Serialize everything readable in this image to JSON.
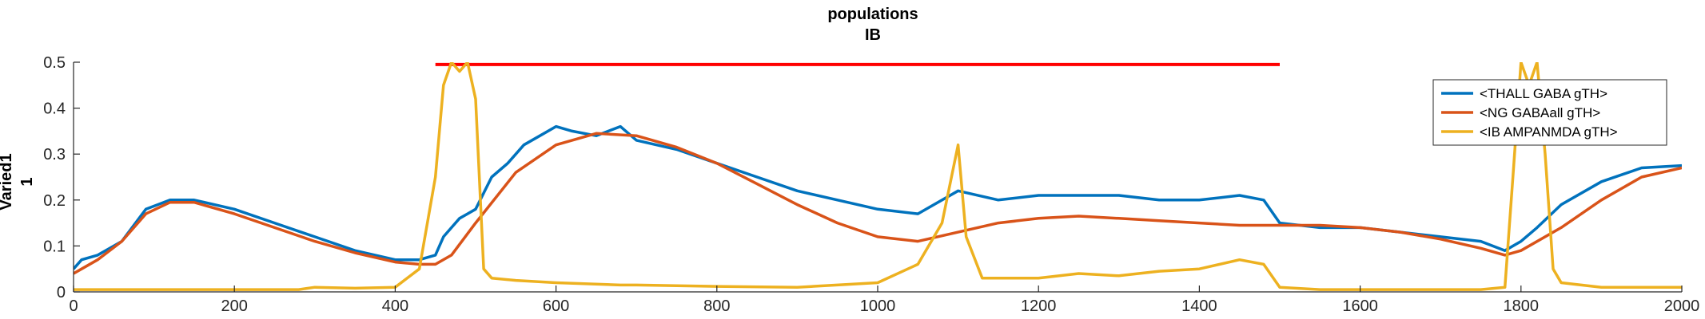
{
  "chart_data": {
    "type": "line",
    "title": "populations",
    "subtitle": "IB",
    "xlabel": "",
    "ylabel": "Varied1",
    "ylabel2": "1",
    "xlim": [
      0,
      2000
    ],
    "ylim": [
      0,
      0.5
    ],
    "xticks": [
      0,
      200,
      400,
      600,
      800,
      1000,
      1200,
      1400,
      1600,
      1800,
      2000
    ],
    "yticks": [
      0,
      0.1,
      0.2,
      0.3,
      0.4,
      0.5
    ],
    "xtick_labels": [
      "0",
      "200",
      "400",
      "600",
      "800",
      "1000",
      "1200",
      "1400",
      "1600",
      "1800",
      "2000"
    ],
    "ytick_labels": [
      "0",
      "0.1",
      "0.2",
      "0.3",
      "0.4",
      "0.5"
    ],
    "grid": false,
    "legend_position": "top-right",
    "stimulus_bar": {
      "x": [
        450,
        1500
      ],
      "y": 0.495,
      "color": "#FF0000"
    },
    "series": [
      {
        "name": "<THALL GABA gTH>",
        "color": "#0072BD",
        "x": [
          0,
          10,
          30,
          60,
          90,
          120,
          150,
          200,
          250,
          300,
          350,
          400,
          430,
          450,
          460,
          470,
          480,
          490,
          500,
          520,
          540,
          560,
          580,
          600,
          620,
          650,
          680,
          700,
          750,
          800,
          850,
          900,
          950,
          1000,
          1050,
          1100,
          1150,
          1200,
          1250,
          1300,
          1350,
          1400,
          1450,
          1480,
          1500,
          1550,
          1600,
          1650,
          1700,
          1750,
          1780,
          1800,
          1820,
          1850,
          1900,
          1950,
          2000
        ],
        "y": [
          0.05,
          0.07,
          0.08,
          0.11,
          0.18,
          0.2,
          0.2,
          0.18,
          0.15,
          0.12,
          0.09,
          0.07,
          0.07,
          0.08,
          0.12,
          0.14,
          0.16,
          0.17,
          0.18,
          0.25,
          0.28,
          0.32,
          0.34,
          0.36,
          0.35,
          0.34,
          0.36,
          0.33,
          0.31,
          0.28,
          0.25,
          0.22,
          0.2,
          0.18,
          0.17,
          0.22,
          0.2,
          0.21,
          0.21,
          0.21,
          0.2,
          0.2,
          0.21,
          0.2,
          0.15,
          0.14,
          0.14,
          0.13,
          0.12,
          0.11,
          0.09,
          0.11,
          0.14,
          0.19,
          0.24,
          0.27,
          0.275
        ]
      },
      {
        "name": "<NG GABAall gTH>",
        "color": "#D95319",
        "x": [
          0,
          10,
          30,
          60,
          90,
          120,
          150,
          200,
          250,
          300,
          350,
          400,
          430,
          450,
          470,
          500,
          550,
          600,
          650,
          700,
          750,
          800,
          850,
          900,
          950,
          1000,
          1050,
          1100,
          1150,
          1200,
          1250,
          1300,
          1350,
          1400,
          1450,
          1500,
          1550,
          1600,
          1650,
          1700,
          1750,
          1780,
          1800,
          1850,
          1900,
          1950,
          2000
        ],
        "y": [
          0.04,
          0.05,
          0.07,
          0.11,
          0.17,
          0.195,
          0.195,
          0.17,
          0.14,
          0.11,
          0.085,
          0.065,
          0.06,
          0.06,
          0.08,
          0.15,
          0.26,
          0.32,
          0.345,
          0.34,
          0.315,
          0.28,
          0.235,
          0.19,
          0.15,
          0.12,
          0.11,
          0.13,
          0.15,
          0.16,
          0.165,
          0.16,
          0.155,
          0.15,
          0.145,
          0.145,
          0.145,
          0.14,
          0.13,
          0.115,
          0.095,
          0.08,
          0.09,
          0.14,
          0.2,
          0.25,
          0.27
        ]
      },
      {
        "name": "<IB AMPANMDA gTH>",
        "color": "#EDB120",
        "x": [
          0,
          100,
          200,
          280,
          300,
          350,
          400,
          430,
          450,
          460,
          470,
          480,
          490,
          500,
          510,
          520,
          550,
          600,
          680,
          700,
          800,
          900,
          1000,
          1050,
          1080,
          1100,
          1110,
          1130,
          1200,
          1250,
          1300,
          1350,
          1400,
          1450,
          1480,
          1500,
          1550,
          1600,
          1700,
          1750,
          1780,
          1790,
          1800,
          1810,
          1820,
          1830,
          1840,
          1850,
          1900,
          2000
        ],
        "y": [
          0.005,
          0.005,
          0.005,
          0.005,
          0.01,
          0.008,
          0.01,
          0.05,
          0.25,
          0.45,
          0.5,
          0.48,
          0.5,
          0.42,
          0.05,
          0.03,
          0.025,
          0.02,
          0.015,
          0.015,
          0.012,
          0.01,
          0.02,
          0.06,
          0.15,
          0.32,
          0.12,
          0.03,
          0.03,
          0.04,
          0.035,
          0.045,
          0.05,
          0.07,
          0.06,
          0.01,
          0.005,
          0.005,
          0.005,
          0.005,
          0.01,
          0.25,
          0.5,
          0.45,
          0.5,
          0.3,
          0.05,
          0.02,
          0.01,
          0.01
        ]
      }
    ]
  }
}
